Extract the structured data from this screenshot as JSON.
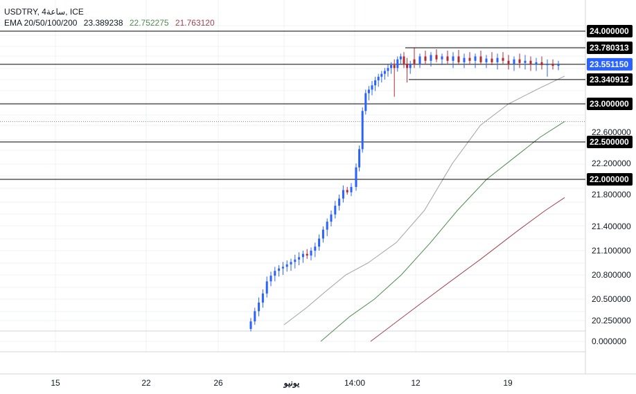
{
  "legend": {
    "symbol": "USDTRY, 4ساعة, ICE",
    "ema_label": "EMA 20/50/100/200",
    "ema20": "23.389238",
    "ema50": "22.752275",
    "ema100": "21.763120"
  },
  "colors": {
    "up": "#2962ff",
    "down": "#b22833",
    "ema20": "#a0a0a0",
    "ema50": "#4f8a4f",
    "ema100": "#a0424f",
    "tag_dark": "#000000",
    "tag_blue": "#2962ff"
  },
  "chart_data": {
    "type": "candlestick",
    "symbol": "USDTRY",
    "timeframe": "4ساعة",
    "x_tick_labels": [
      "15",
      "22",
      "26",
      "يونيو",
      "14:00",
      "12",
      "19"
    ],
    "y_tick_labels": [
      "22.600000",
      "22.200000",
      "21.800000",
      "21.400000",
      "21.100000",
      "20.800000",
      "20.500000",
      "20.250000",
      "0.000000"
    ],
    "horizontal_levels": [
      {
        "label": "24.000000",
        "value": 24.0
      },
      {
        "label": "23.780313",
        "value": 23.780313
      },
      {
        "label": "23.340912",
        "value": 23.340912
      },
      {
        "label": "23.000000",
        "value": 23.0
      },
      {
        "label": "22.500000",
        "value": 22.5
      },
      {
        "label": "22.000000",
        "value": 22.0
      }
    ],
    "last_price": {
      "label": "23.551150",
      "value": 23.55115
    },
    "dotted_level": 22.75,
    "range_box": {
      "top": 23.780313,
      "bottom": 23.340912
    },
    "candles_phase1": [
      [
        20.15,
        20.28,
        20.12,
        20.24
      ],
      [
        20.24,
        20.4,
        20.2,
        20.36
      ],
      [
        20.36,
        20.52,
        20.3,
        20.46
      ],
      [
        20.46,
        20.62,
        20.4,
        20.57
      ],
      [
        20.57,
        20.78,
        20.52,
        20.72
      ],
      [
        20.72,
        20.84,
        20.66,
        20.79
      ],
      [
        20.79,
        20.9,
        20.72,
        20.85
      ],
      [
        20.85,
        20.92,
        20.78,
        20.88
      ],
      [
        20.88,
        20.96,
        20.8,
        20.9
      ],
      [
        20.9,
        20.98,
        20.84,
        20.93
      ],
      [
        20.93,
        21.0,
        20.85,
        20.96
      ],
      [
        20.96,
        21.05,
        20.88,
        20.99
      ],
      [
        20.99,
        21.08,
        20.92,
        21.02
      ],
      [
        21.02,
        21.1,
        20.95,
        21.06
      ],
      [
        21.06,
        21.12,
        21.0,
        21.04
      ],
      [
        21.04,
        21.14,
        20.98,
        21.1
      ],
      [
        21.1,
        21.2,
        21.02,
        21.15
      ],
      [
        21.15,
        21.3,
        21.1,
        21.25
      ],
      [
        21.25,
        21.4,
        21.2,
        21.36
      ],
      [
        21.36,
        21.5,
        21.28,
        21.46
      ],
      [
        21.46,
        21.6,
        21.4,
        21.55
      ],
      [
        21.55,
        21.72,
        21.5,
        21.66
      ],
      [
        21.66,
        21.8,
        21.6,
        21.75
      ],
      [
        21.75,
        21.92,
        21.7,
        21.86
      ],
      [
        21.86,
        21.9,
        21.8,
        21.83
      ],
      [
        21.83,
        21.95,
        21.78,
        21.9
      ]
    ],
    "candles_phase2": [
      [
        21.9,
        22.2,
        21.85,
        22.15
      ],
      [
        22.15,
        22.45,
        22.1,
        22.4
      ],
      [
        22.4,
        22.95,
        22.35,
        22.9
      ],
      [
        22.9,
        23.2,
        22.85,
        23.15
      ],
      [
        23.15,
        23.25,
        23.05,
        23.2
      ],
      [
        23.2,
        23.32,
        23.12,
        23.26
      ],
      [
        23.26,
        23.38,
        23.18,
        23.33
      ],
      [
        23.33,
        23.42,
        23.24,
        23.38
      ],
      [
        23.38,
        23.46,
        23.3,
        23.42
      ],
      [
        23.42,
        23.5,
        23.34,
        23.46
      ],
      [
        23.46,
        23.55,
        23.38,
        23.5
      ],
      [
        23.5,
        23.58,
        23.42,
        23.54
      ],
      [
        23.54,
        23.62,
        23.1,
        23.5
      ],
      [
        23.5,
        23.66,
        23.45,
        23.62
      ],
      [
        23.62,
        23.7,
        23.55,
        23.66
      ],
      [
        23.66,
        23.72,
        23.5,
        23.56
      ],
      [
        23.56,
        23.64,
        23.3,
        23.5
      ],
      [
        23.5,
        23.6,
        23.42,
        23.55
      ]
    ],
    "range_candles": [
      [
        23.62,
        23.78,
        23.5,
        23.56
      ],
      [
        23.56,
        23.7,
        23.5,
        23.66
      ],
      [
        23.66,
        23.74,
        23.55,
        23.6
      ],
      [
        23.6,
        23.72,
        23.52,
        23.68
      ],
      [
        23.68,
        23.76,
        23.58,
        23.62
      ],
      [
        23.62,
        23.7,
        23.54,
        23.66
      ],
      [
        23.66,
        23.74,
        23.56,
        23.6
      ],
      [
        23.6,
        23.72,
        23.5,
        23.66
      ],
      [
        23.66,
        23.75,
        23.56,
        23.58
      ],
      [
        23.58,
        23.7,
        23.5,
        23.64
      ],
      [
        23.64,
        23.72,
        23.55,
        23.6
      ],
      [
        23.6,
        23.7,
        23.5,
        23.66
      ],
      [
        23.66,
        23.74,
        23.56,
        23.58
      ],
      [
        23.58,
        23.68,
        23.5,
        23.63
      ],
      [
        23.63,
        23.72,
        23.54,
        23.58
      ],
      [
        23.58,
        23.7,
        23.48,
        23.64
      ],
      [
        23.64,
        23.72,
        23.55,
        23.6
      ],
      [
        23.6,
        23.68,
        23.48,
        23.56
      ],
      [
        23.56,
        23.66,
        23.46,
        23.62
      ],
      [
        23.62,
        23.7,
        23.5,
        23.57
      ],
      [
        23.57,
        23.68,
        23.48,
        23.6
      ],
      [
        23.6,
        23.66,
        23.46,
        23.55
      ],
      [
        23.55,
        23.64,
        23.46,
        23.58
      ],
      [
        23.58,
        23.66,
        23.48,
        23.54
      ],
      [
        23.54,
        23.62,
        23.38,
        23.56
      ],
      [
        23.56,
        23.62,
        23.48,
        23.53
      ],
      [
        23.53,
        23.6,
        23.47,
        23.55
      ]
    ],
    "ema_series": [
      {
        "name": "EMA 20",
        "value": 23.389238,
        "points": [
          [
            20.2,
            0
          ],
          [
            20.4,
            0.08
          ],
          [
            20.6,
            0.15
          ],
          [
            20.8,
            0.22
          ],
          [
            20.95,
            0.3
          ],
          [
            21.2,
            0.4
          ],
          [
            21.6,
            0.5
          ],
          [
            22.2,
            0.6
          ],
          [
            22.7,
            0.7
          ],
          [
            23.0,
            0.8
          ],
          [
            23.2,
            0.9
          ],
          [
            23.389,
            1
          ]
        ]
      },
      {
        "name": "EMA 50",
        "value": 22.752275,
        "points": [
          [
            20.0,
            0
          ],
          [
            20.3,
            0.12
          ],
          [
            20.5,
            0.22
          ],
          [
            20.8,
            0.33
          ],
          [
            21.2,
            0.45
          ],
          [
            21.6,
            0.56
          ],
          [
            22.0,
            0.68
          ],
          [
            22.3,
            0.8
          ],
          [
            22.55,
            0.9
          ],
          [
            22.752,
            1
          ]
        ]
      },
      {
        "name": "EMA 100",
        "value": 21.76312,
        "points": [
          [
            20.0,
            0
          ],
          [
            20.35,
            0.2
          ],
          [
            20.7,
            0.4
          ],
          [
            21.0,
            0.57
          ],
          [
            21.35,
            0.76
          ],
          [
            21.6,
            0.9
          ],
          [
            21.763,
            1
          ]
        ]
      }
    ]
  }
}
